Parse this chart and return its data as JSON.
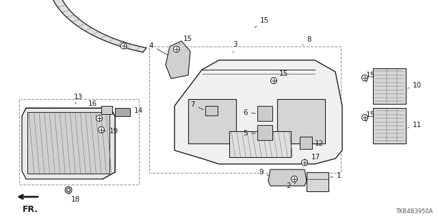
{
  "bg_color": "#ffffff",
  "diagram_code": "TKB4B3950A",
  "dark": "#1a1a1a",
  "gray": "#666666",
  "light_gray": "#cccccc",
  "mid_gray": "#aaaaaa"
}
